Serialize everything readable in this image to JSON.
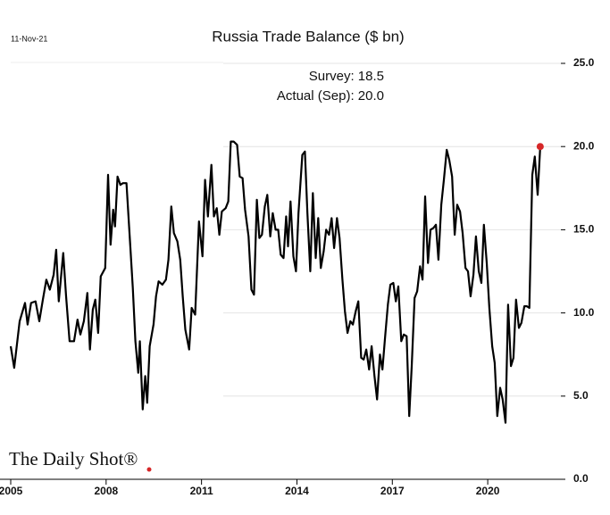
{
  "chart_data": {
    "type": "line",
    "title": "Russia Trade Balance ($ bn)",
    "date_note": "11-Nov-21",
    "annotations": [
      "Survey:  18.5",
      "Actual (Sep):  20.0"
    ],
    "source": "The Daily Shot®",
    "x": [
      2005.0,
      2005.11,
      2005.28,
      2005.45,
      2005.53,
      2005.64,
      2005.78,
      2005.9,
      2006.01,
      2006.12,
      2006.23,
      2006.35,
      2006.43,
      2006.51,
      2006.65,
      2006.74,
      2006.85,
      2006.99,
      2007.1,
      2007.19,
      2007.3,
      2007.41,
      2007.49,
      2007.58,
      2007.66,
      2007.75,
      2007.83,
      2007.97,
      2008.06,
      2008.14,
      2008.22,
      2008.28,
      2008.36,
      2008.45,
      2008.53,
      2008.64,
      2008.76,
      2008.84,
      2008.92,
      2009.01,
      2009.06,
      2009.15,
      2009.23,
      2009.29,
      2009.37,
      2009.49,
      2009.57,
      2009.65,
      2009.77,
      2009.88,
      2009.96,
      2010.05,
      2010.13,
      2010.24,
      2010.33,
      2010.41,
      2010.49,
      2010.61,
      2010.69,
      2010.8,
      2010.92,
      2011.03,
      2011.11,
      2011.2,
      2011.31,
      2011.39,
      2011.48,
      2011.56,
      2011.64,
      2011.76,
      2011.84,
      2011.92,
      2012.01,
      2012.12,
      2012.2,
      2012.29,
      2012.37,
      2012.48,
      2012.57,
      2012.65,
      2012.74,
      2012.82,
      2012.9,
      2012.99,
      2013.07,
      2013.16,
      2013.24,
      2013.33,
      2013.41,
      2013.49,
      2013.58,
      2013.66,
      2013.72,
      2013.8,
      2013.89,
      2013.97,
      2014.05,
      2014.17,
      2014.25,
      2014.33,
      2014.42,
      2014.5,
      2014.59,
      2014.67,
      2014.75,
      2014.84,
      2014.92,
      2015.01,
      2015.09,
      2015.17,
      2015.26,
      2015.34,
      2015.43,
      2015.51,
      2015.59,
      2015.68,
      2015.76,
      2015.85,
      2015.93,
      2016.02,
      2016.1,
      2016.18,
      2016.27,
      2016.35,
      2016.44,
      2016.52,
      2016.61,
      2016.69,
      2016.77,
      2016.86,
      2016.94,
      2017.03,
      2017.11,
      2017.19,
      2017.28,
      2017.36,
      2017.45,
      2017.53,
      2017.61,
      2017.7,
      2017.78,
      2017.87,
      2017.95,
      2018.03,
      2018.12,
      2018.2,
      2018.29,
      2018.37,
      2018.45,
      2018.54,
      2018.62,
      2018.71,
      2018.79,
      2018.88,
      2018.96,
      2019.04,
      2019.13,
      2019.21,
      2019.3,
      2019.38,
      2019.46,
      2019.55,
      2019.63,
      2019.72,
      2019.8,
      2019.88,
      2019.97,
      2020.05,
      2020.14,
      2020.22,
      2020.3,
      2020.39,
      2020.47,
      2020.56,
      2020.64,
      2020.73,
      2020.81,
      2020.89,
      2020.98,
      2021.06,
      2021.15,
      2021.23,
      2021.31,
      2021.4,
      2021.48,
      2021.57,
      2021.65
    ],
    "series": [
      {
        "name": "Russia Trade Balance",
        "color": "#000000",
        "values": [
          8.0,
          6.7,
          9.5,
          10.6,
          9.3,
          10.6,
          10.7,
          9.5,
          10.8,
          12.0,
          11.4,
          12.3,
          13.8,
          10.7,
          13.6,
          11.0,
          8.3,
          8.3,
          9.6,
          8.7,
          9.5,
          11.2,
          7.8,
          10.2,
          10.8,
          8.8,
          12.2,
          12.7,
          18.3,
          14.1,
          16.2,
          15.2,
          18.2,
          17.7,
          17.8,
          17.8,
          14.0,
          11.5,
          8.3,
          6.4,
          8.3,
          4.2,
          6.2,
          4.6,
          8.0,
          9.3,
          11.0,
          11.9,
          11.7,
          12.0,
          13.2,
          16.4,
          14.8,
          14.3,
          13.2,
          11.0,
          9.0,
          7.8,
          10.3,
          9.9,
          15.5,
          13.4,
          18.0,
          15.8,
          18.9,
          15.8,
          16.3,
          14.7,
          16.1,
          16.3,
          16.7,
          20.3,
          20.3,
          20.1,
          18.2,
          18.1,
          16.2,
          14.6,
          11.4,
          11.1,
          16.8,
          14.5,
          14.7,
          16.4,
          17.1,
          14.6,
          16.0,
          15.0,
          15.0,
          13.5,
          13.3,
          15.8,
          14.0,
          16.7,
          13.4,
          12.5,
          16.0,
          19.5,
          19.7,
          16.0,
          12.5,
          17.2,
          13.3,
          15.7,
          12.7,
          13.7,
          15.0,
          14.7,
          15.7,
          13.9,
          15.7,
          14.5,
          12.0,
          10.1,
          8.8,
          9.5,
          9.3,
          10.1,
          10.7,
          7.3,
          7.2,
          7.8,
          6.6,
          8.0,
          6.2,
          4.8,
          7.5,
          6.6,
          8.5,
          10.5,
          11.7,
          11.8,
          10.7,
          11.6,
          8.3,
          8.7,
          8.6,
          3.8,
          6.8,
          10.9,
          11.3,
          12.8,
          12.0,
          17.0,
          13.0,
          15.0,
          15.1,
          15.3,
          13.2,
          16.5,
          18.0,
          19.8,
          19.2,
          18.2,
          14.7,
          16.5,
          16.1,
          14.8,
          12.7,
          12.5,
          11.0,
          12.3,
          14.6,
          12.5,
          11.8,
          15.3,
          13.0,
          10.3,
          8.0,
          7.0,
          3.8,
          5.5,
          4.8,
          3.4,
          10.5,
          6.8,
          7.3,
          10.8,
          9.1,
          9.4,
          10.4,
          10.4,
          10.3,
          18.3,
          19.4,
          17.1,
          20.0
        ]
      }
    ],
    "highlight_color": "#d62728",
    "xlim": [
      2005,
      2022.3
    ],
    "xticks": [
      2005,
      2008,
      2011,
      2014,
      2017,
      2020
    ],
    "ylim": [
      0,
      25
    ],
    "yticks": [
      {
        "value": 0,
        "label": "0.0"
      },
      {
        "value": 5,
        "label": "5.0"
      },
      {
        "value": 10,
        "label": "10.0"
      },
      {
        "value": 15,
        "label": "15.0"
      },
      {
        "value": 20,
        "label": "20.0"
      },
      {
        "value": 25,
        "label": "25.0"
      }
    ],
    "grid": true
  }
}
